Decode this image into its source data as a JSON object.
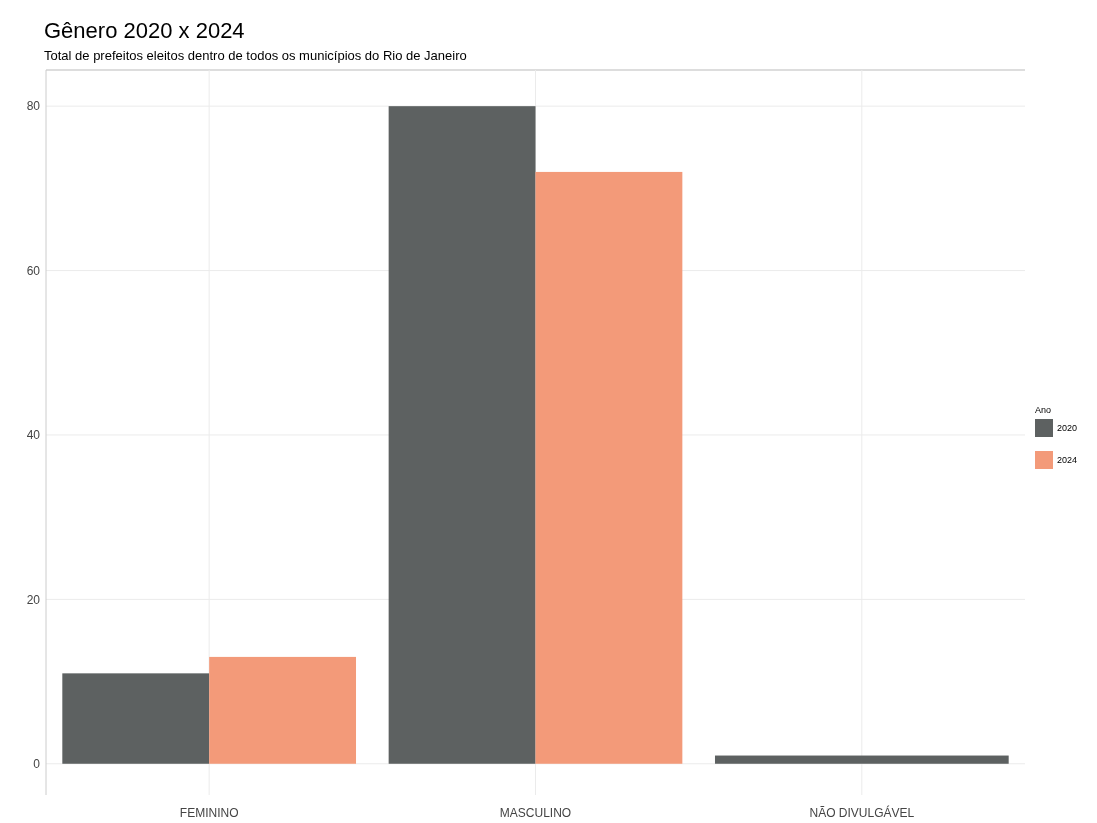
{
  "chart_data": {
    "type": "bar",
    "title": "Gênero 2020 x 2024",
    "subtitle": "Total de prefeitos eleitos dentro de todos os municípios do Rio de Janeiro",
    "categories": [
      "FEMININO",
      "MASCULINO",
      "NÃO DIVULGÁVEL"
    ],
    "series": [
      {
        "name": "2020",
        "color": "#5d6161",
        "values": [
          11,
          80,
          1
        ]
      },
      {
        "name": "2024",
        "color": "#f39a79",
        "values": [
          13,
          72,
          null
        ]
      }
    ],
    "legend_title": "Ano",
    "legend": "right",
    "ylim": [
      -3.8,
      84.4
    ],
    "yticks": [
      0,
      20,
      40,
      60,
      80
    ],
    "grid": true
  }
}
